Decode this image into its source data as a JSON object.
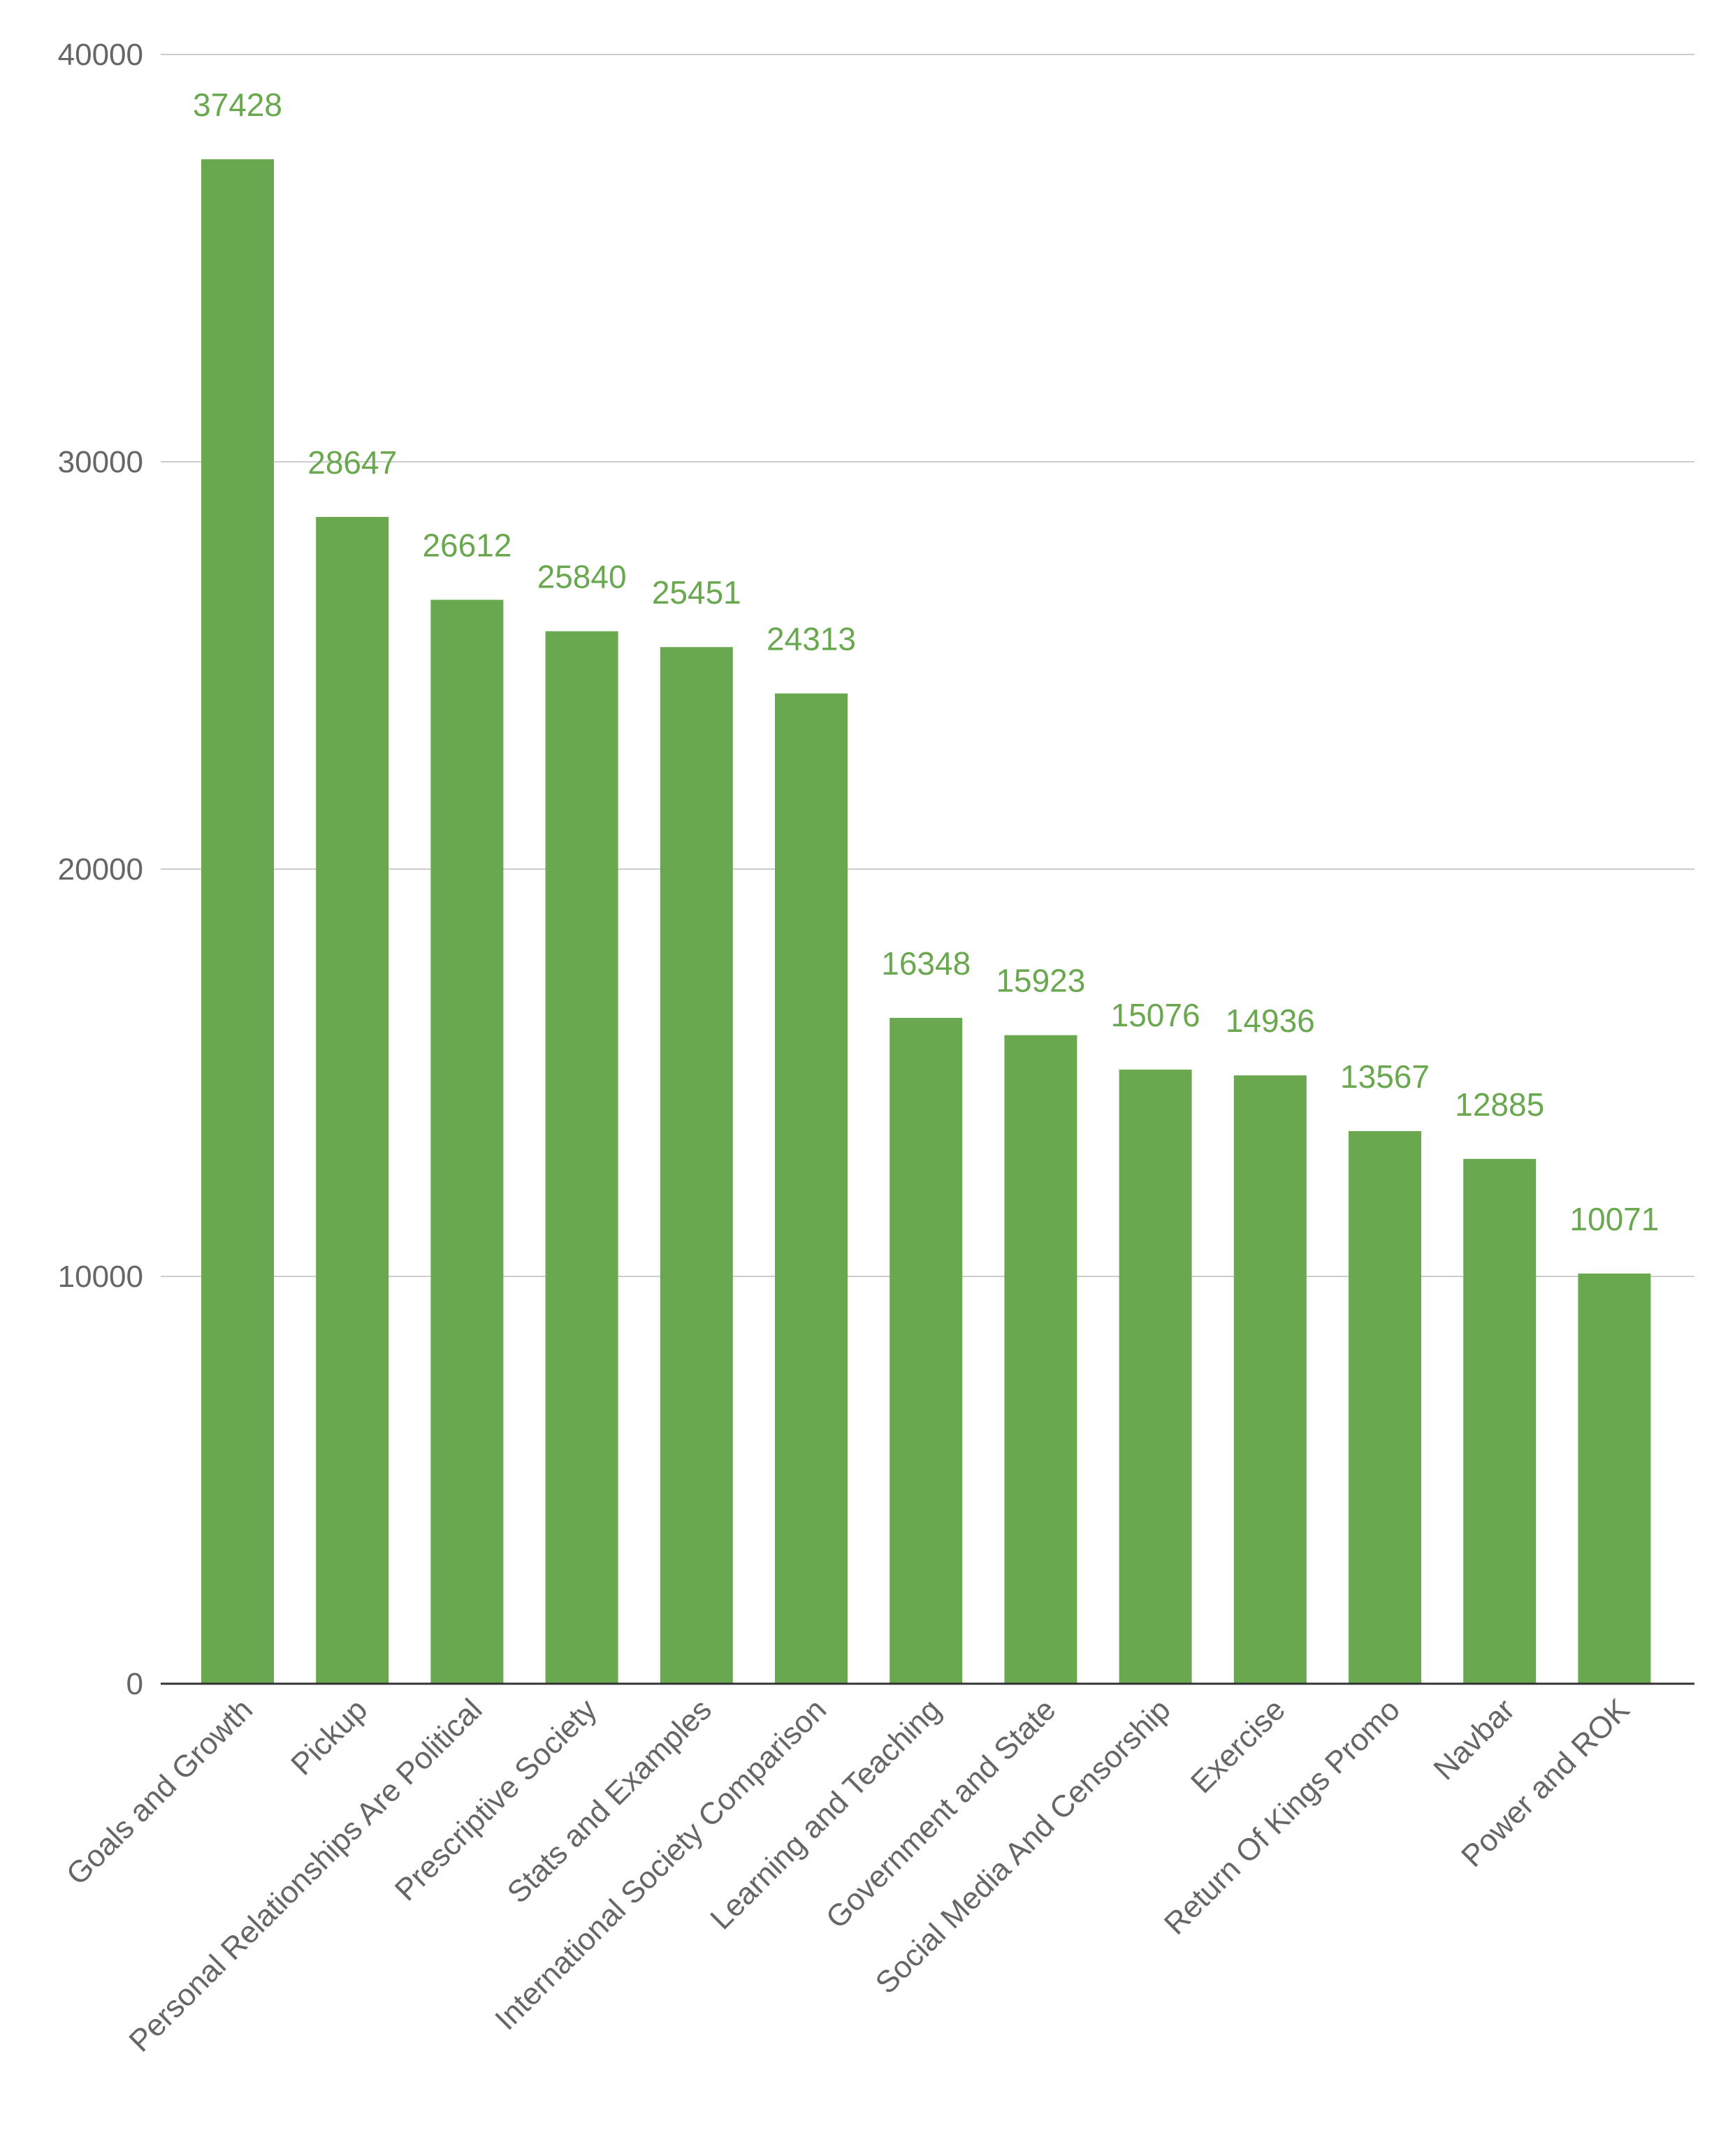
{
  "chart_data": {
    "type": "bar",
    "title": "",
    "xlabel": "",
    "ylabel": "",
    "categories": [
      "Goals and Growth",
      "Pickup",
      "Personal Relationships Are Political",
      "Prescriptive Society",
      "Stats and Examples",
      "International Society Comparison",
      "Learning and Teaching",
      "Government and State",
      "Social Media And Censorship",
      "Exercise",
      "Return Of Kings Promo",
      "Navbar",
      "Power and ROK"
    ],
    "values": [
      37428,
      28647,
      26612,
      25840,
      25451,
      24313,
      16348,
      15923,
      15076,
      14936,
      13567,
      12885,
      10071
    ],
    "value_labels": [
      "37428",
      "28647",
      "26612",
      "25840",
      "25451",
      "24313",
      "16348",
      "15923",
      "15076",
      "14936",
      "13567",
      "12885",
      "10071"
    ],
    "ylim": [
      0,
      40000
    ],
    "yticks": [
      0,
      10000,
      20000,
      30000,
      40000
    ],
    "ytick_labels": [
      "0",
      "10000",
      "20000",
      "30000",
      "40000"
    ],
    "grid": true,
    "legend": "none",
    "colors": {
      "bar": "#6aa84f",
      "data_label": "#6aa84f",
      "gridline": "#cccccc",
      "axis": "#333333",
      "tick_text": "#666666"
    }
  }
}
